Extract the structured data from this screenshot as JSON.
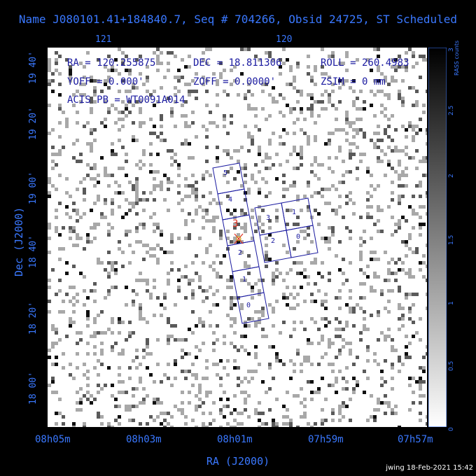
{
  "title": "Name J080101.41+184840.7, Seq # 704266, Obsid 24725, ST Scheduled",
  "top_axis": {
    "labels": [
      "121",
      "120"
    ]
  },
  "bottom_axis": {
    "labels": [
      "08h05m",
      "08h03m",
      "08h01m",
      "07h59m",
      "07h57m"
    ]
  },
  "left_axis": {
    "labels": [
      "19 40'",
      "19 20'",
      "19 00'",
      "18 40'",
      "18 20'",
      "18 00'"
    ]
  },
  "xlabel": "RA (J2000)",
  "ylabel": "Dec (J2000)",
  "colorbar": {
    "title": "RASS counts",
    "ticks": [
      "3",
      "2.5",
      "2",
      "1.5",
      "1",
      "0.5",
      "0"
    ]
  },
  "info": {
    "ra": "RA = 120.255875",
    "dec": "DEC = 18.811306",
    "roll": "ROLL = 260.4983",
    "yoff": "YOFF =   0.000'",
    "zoff": "ZOFF =  0.0000'",
    "zsim": "ZSIM = 0 mm",
    "acis": "ACIS PB = WT0091A014"
  },
  "chips_s": [
    "5",
    "4",
    "3",
    "2",
    "1",
    "0"
  ],
  "chips_i": [
    "3",
    "1",
    "2",
    "0"
  ],
  "stamp": "jwing 18-Feb-2021 15:42",
  "colors": {
    "axis": "#3a78ff",
    "chip": "#1a1aa0",
    "target": "#e03020"
  }
}
